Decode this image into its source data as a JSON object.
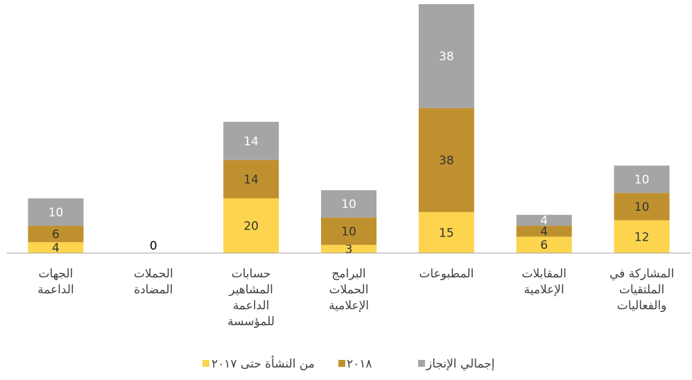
{
  "chart_data": {
    "type": "stacked_bar",
    "categories": [
      "الجهات\nالداعمة",
      "الحملات\nالمضادة",
      "حسابات\nالمشاهير\nالداعمة\nللمؤسسة",
      "البرامج\nالحملات\nالإعلامية",
      "المطبوعات",
      "المقابلات\nالإعلامية",
      "المشاركة في\nالملتقيات\nوالفعاليات"
    ],
    "series": [
      {
        "name": "من النشأة حتى ٢٠١٧",
        "color": "#fcd44e",
        "values": [
          4,
          0,
          20,
          3,
          15,
          6,
          12
        ]
      },
      {
        "name": "٢٠١٨",
        "color": "#bf912e",
        "values": [
          6,
          0,
          14,
          10,
          38,
          4,
          10
        ]
      },
      {
        "name": "إجمالي الإنجاز",
        "color": "#a5a5a5",
        "values": [
          10,
          0,
          14,
          10,
          38,
          4,
          10
        ]
      }
    ]
  }
}
